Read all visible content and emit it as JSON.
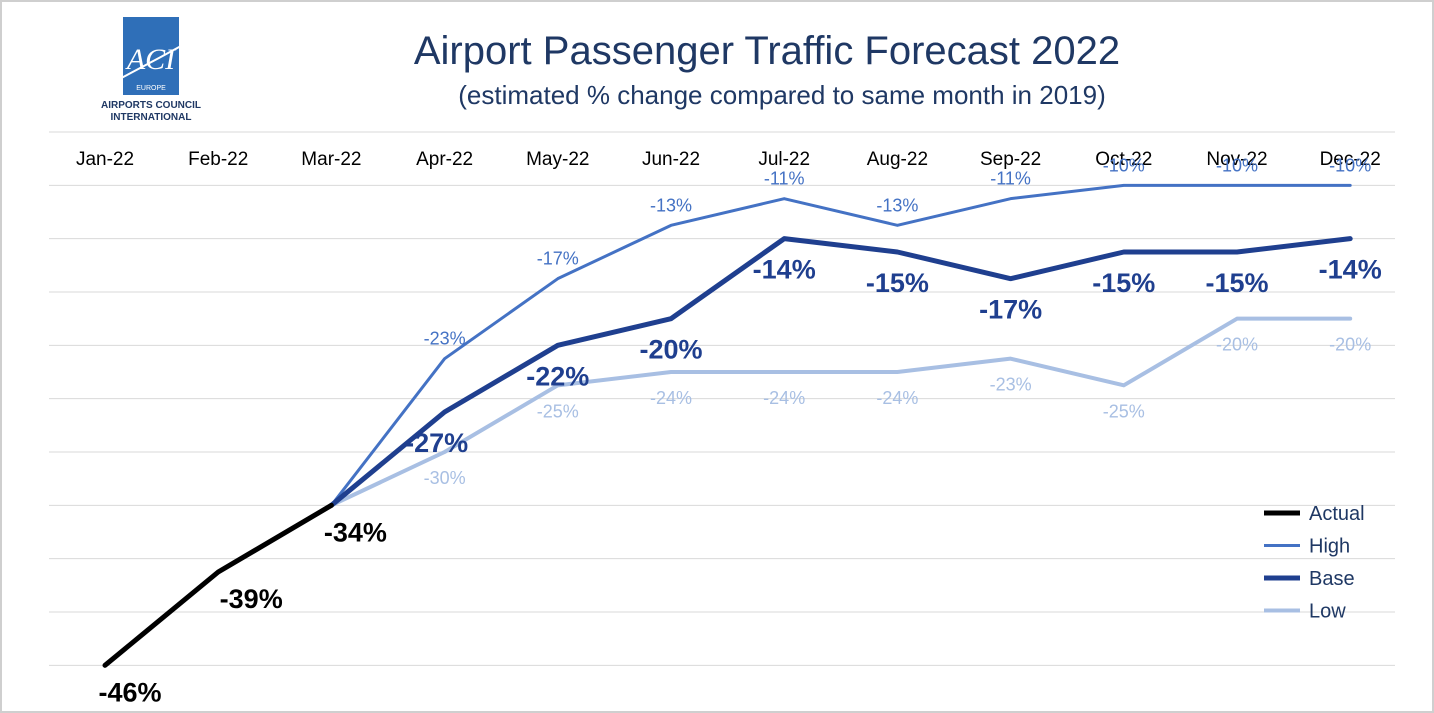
{
  "logo": {
    "mark": "ACI",
    "region": "EUROPE",
    "org_line1": "AIRPORTS COUNCIL",
    "org_line2": "INTERNATIONAL"
  },
  "colors": {
    "actual": "#000000",
    "high": "#4472c4",
    "base": "#1f3f8f",
    "low": "#a8bfe3",
    "title": "#1f3864",
    "grid": "#d9d9d9"
  },
  "chart_data": {
    "type": "line",
    "title": "Airport Passenger Traffic Forecast 2022",
    "subtitle": "(estimated % change compared to same month in 2019)",
    "categories": [
      "Jan-22",
      "Feb-22",
      "Mar-22",
      "Apr-22",
      "May-22",
      "Jun-22",
      "Jul-22",
      "Aug-22",
      "Sep-22",
      "Oct-22",
      "Nov-22",
      "Dec-22"
    ],
    "ylim": [
      -48,
      -6
    ],
    "grid": true,
    "legend_position": "bottom-right",
    "series": [
      {
        "name": "Actual",
        "color": "#000000",
        "values": [
          -46,
          -39,
          -34,
          null,
          null,
          null,
          null,
          null,
          null,
          null,
          null,
          null
        ],
        "labels": [
          "-46%",
          "-39%",
          "-34%",
          "",
          "",
          "",
          "",
          "",
          "",
          "",
          "",
          ""
        ]
      },
      {
        "name": "High",
        "color": "#4472c4",
        "values": [
          null,
          null,
          -34,
          -23,
          -17,
          -13,
          -11,
          -13,
          -11,
          -10,
          -10,
          -10
        ],
        "labels": [
          "",
          "",
          "",
          "-23%",
          "-17%",
          "-13%",
          "-11%",
          "-13%",
          "-11%",
          "-10%",
          "-10%",
          "-10%"
        ]
      },
      {
        "name": "Base",
        "color": "#1f3f8f",
        "values": [
          null,
          null,
          -34,
          -27,
          -22,
          -20,
          -14,
          -15,
          -17,
          -15,
          -15,
          -14
        ],
        "labels": [
          "",
          "",
          "",
          "-27%",
          "-22%",
          "-20%",
          "-14%",
          "-15%",
          "-17%",
          "-15%",
          "-15%",
          "-14%"
        ]
      },
      {
        "name": "Low",
        "color": "#a8bfe3",
        "values": [
          null,
          null,
          -34,
          -30,
          -25,
          -24,
          -24,
          -24,
          -23,
          -25,
          -20,
          -20
        ],
        "labels": [
          "",
          "",
          "",
          "-30%",
          "-25%",
          "-24%",
          "-24%",
          "-24%",
          "-23%",
          "-25%",
          "-20%",
          "-20%"
        ]
      }
    ]
  }
}
